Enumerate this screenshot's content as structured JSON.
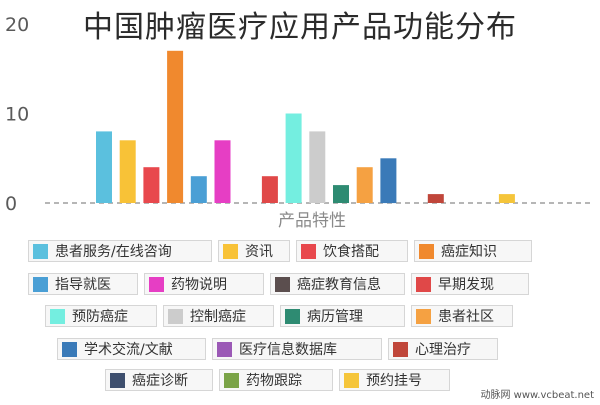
{
  "chart_data": {
    "type": "bar",
    "title": "中国肿瘤医疗应用产品功能分布",
    "xlabel": "产品特性",
    "ylabel": "",
    "ylim": [
      0,
      20
    ],
    "yticks": [
      0,
      10,
      20
    ],
    "grid": false,
    "legend_position": "bottom",
    "categories": [
      "患者服务/在线咨询",
      "资讯",
      "饮食搭配",
      "癌症知识",
      "指导就医",
      "药物说明",
      "癌症教育信息",
      "早期发现",
      "预防癌症",
      "控制癌症",
      "病历管理",
      "患者社区",
      "学术交流/文献",
      "医疗信息数据库",
      "心理治疗",
      "癌症诊断",
      "药物跟踪",
      "预约挂号"
    ],
    "values": [
      8,
      7,
      4,
      17,
      3,
      7,
      0,
      3,
      10,
      8,
      2,
      4,
      5,
      0,
      1,
      0,
      0,
      1
    ],
    "colors": [
      "#5bc0de",
      "#f8c237",
      "#e8484d",
      "#f0892e",
      "#4a9fd5",
      "#e63ec4",
      "#5b4e4e",
      "#e04848",
      "#74eee0",
      "#cccccc",
      "#2e8b72",
      "#f5a142",
      "#3a7ab8",
      "#9b59b6",
      "#c0463a",
      "#3e4f6e",
      "#7aa347",
      "#f5c53a"
    ]
  },
  "watermark": "动脉网 www.vcbeat.net"
}
